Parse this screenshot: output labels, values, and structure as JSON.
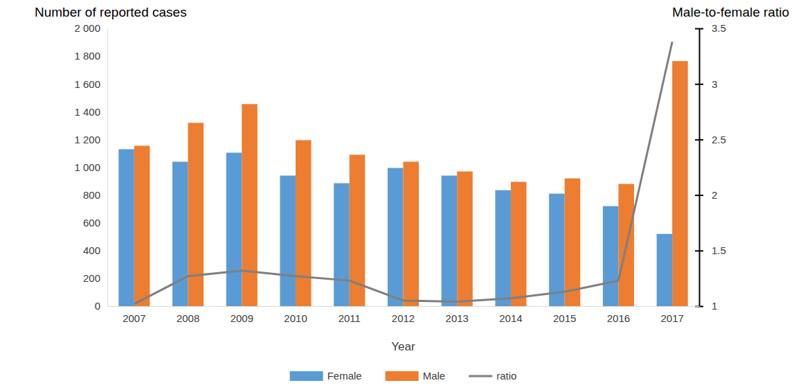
{
  "chart_data": {
    "type": "bar",
    "y_label": "Number of reported cases",
    "y2_label": "Male-to-female ratio",
    "x_label": "Year",
    "categories": [
      "2007",
      "2008",
      "2009",
      "2010",
      "2011",
      "2012",
      "2013",
      "2014",
      "2015",
      "2016",
      "2017"
    ],
    "series": [
      {
        "name": "Female",
        "type": "bar",
        "color": "#5b9bd5",
        "values": [
          1130,
          1040,
          1105,
          940,
          885,
          995,
          940,
          835,
          810,
          720,
          520
        ]
      },
      {
        "name": "Male",
        "type": "bar",
        "color": "#ed7d31",
        "values": [
          1155,
          1320,
          1455,
          1195,
          1090,
          1040,
          970,
          895,
          920,
          880,
          1765
        ]
      },
      {
        "name": "ratio",
        "type": "line",
        "axis": "y2",
        "color": "#7f7f7f",
        "values": [
          1.02,
          1.27,
          1.32,
          1.27,
          1.23,
          1.05,
          1.04,
          1.07,
          1.13,
          1.23,
          3.38
        ]
      }
    ],
    "ylim": [
      0,
      2000
    ],
    "yticks": [
      0,
      200,
      400,
      600,
      800,
      {
        "value": 1000,
        "label": "1 000"
      },
      {
        "value": 1200,
        "label": "1 200"
      },
      {
        "value": 1400,
        "label": "1 400"
      },
      {
        "value": 1600,
        "label": "1 600"
      },
      {
        "value": 1800,
        "label": "1 800"
      },
      {
        "value": 2000,
        "label": "2 000"
      }
    ],
    "y2lim": [
      1,
      3.5
    ],
    "y2ticks": [
      1,
      1.5,
      2,
      2.5,
      3,
      3.5
    ],
    "legend": "bottom"
  }
}
